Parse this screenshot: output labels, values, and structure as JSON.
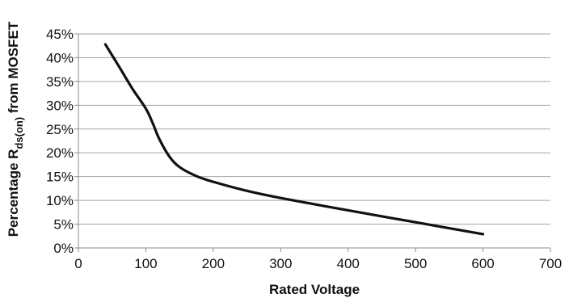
{
  "chart_data": {
    "type": "line",
    "title": "",
    "xlabel": "Rated Voltage",
    "ylabel_main": "Percentage R",
    "ylabel_sub": "ds(on)",
    "ylabel_tail": " from MOSFET",
    "xlim": [
      0,
      700
    ],
    "ylim": [
      0,
      45
    ],
    "x_ticks": [
      0,
      100,
      200,
      300,
      400,
      500,
      600,
      700
    ],
    "x_tick_labels": [
      "0",
      "100",
      "200",
      "300",
      "400",
      "500",
      "600",
      "700"
    ],
    "y_ticks": [
      0,
      5,
      10,
      15,
      20,
      25,
      30,
      35,
      40,
      45
    ],
    "y_tick_labels": [
      "0%",
      "5%",
      "10%",
      "15%",
      "20%",
      "25%",
      "30%",
      "35%",
      "40%",
      "45%"
    ],
    "grid": true,
    "legend": "none",
    "series": [
      {
        "line_color": "#111111",
        "x": [
          40,
          60,
          80,
          100,
          110,
          120,
          135,
          150,
          175,
          200,
          250,
          300,
          400,
          500,
          600
        ],
        "y": [
          42.8,
          38.2,
          33.5,
          29.3,
          26.3,
          22.9,
          19.2,
          17.0,
          15.1,
          13.9,
          12.0,
          10.5,
          7.9,
          5.4,
          2.9
        ]
      }
    ]
  }
}
